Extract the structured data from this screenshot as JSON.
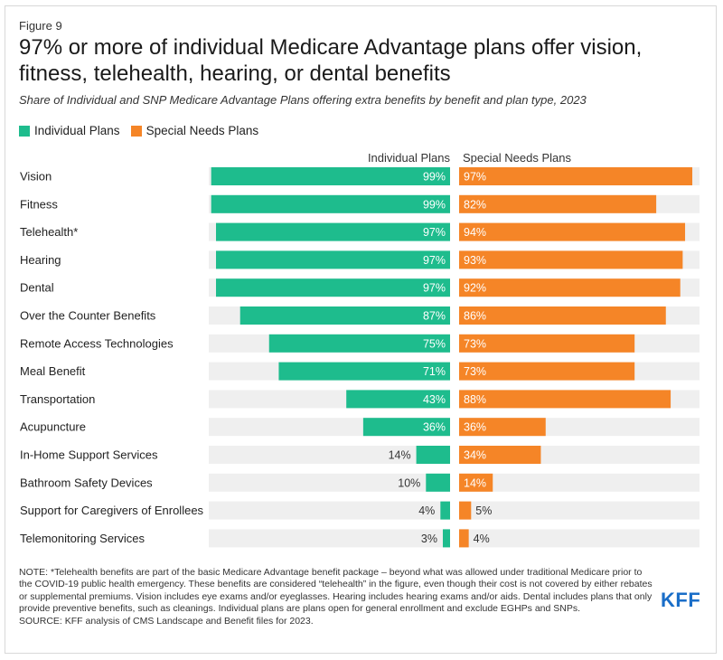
{
  "figure_label": "Figure 9",
  "title": "97% or more of individual Medicare Advantage plans offer vision, fitness, telehealth, hearing, or dental benefits",
  "subtitle": "Share of Individual and SNP Medicare Advantage Plans offering extra benefits by benefit and plan type, 2023",
  "colors": {
    "individual": "#1ebc8d",
    "snp": "#f58527",
    "track": "#efefef",
    "logo": "#1a6ec8"
  },
  "chart_data": {
    "type": "bar",
    "categories": [
      "Vision",
      "Fitness",
      "Telehealth*",
      "Hearing",
      "Dental",
      "Over the Counter Benefits",
      "Remote Access Technologies",
      "Meal Benefit",
      "Transportation",
      "Acupuncture",
      "In-Home Support Services",
      "Bathroom Safety Devices",
      "Support for Caregivers of Enrollees",
      "Telemonitoring Services"
    ],
    "series": [
      {
        "name": "Individual Plans",
        "values": [
          99,
          99,
          97,
          97,
          97,
          87,
          75,
          71,
          43,
          36,
          14,
          10,
          4,
          3
        ],
        "labels": [
          "99%",
          "99%",
          "97%",
          "97%",
          "97%",
          "87%",
          "75%",
          "71%",
          "43%",
          "36%",
          "14%",
          "10%",
          "4%",
          "3%"
        ]
      },
      {
        "name": "Special Needs Plans",
        "values": [
          97,
          82,
          94,
          93,
          92,
          86,
          73,
          73,
          88,
          36,
          34,
          14,
          5,
          4
        ],
        "labels": [
          "97%",
          "82%",
          "94%",
          "93%",
          "92%",
          "86%",
          "73%",
          "73%",
          "88%",
          "36%",
          "34%",
          "14%",
          "5%",
          "4%"
        ]
      }
    ],
    "column_headers": [
      "Individual Plans",
      "Special Needs Plans"
    ],
    "legend": [
      "Individual Plans",
      "Special Needs Plans"
    ],
    "legend_position": "top-left",
    "xlim": [
      0,
      100
    ],
    "grid": false
  },
  "notes": [
    "NOTE: *Telehealth benefits are part of the basic Medicare Advantage benefit package – beyond what was allowed under traditional Medicare prior to the COVID-19 public health emergency. These benefits are considered “telehealth” in the figure, even though their cost is not covered by either rebates or supplemental premiums. Vision includes eye exams and/or eyeglasses. Hearing includes hearing exams and/or aids. Dental includes plans that only provide preventive benefits, such as cleanings. Individual plans are plans open for general enrollment and exclude EGHPs and SNPs.",
    "SOURCE: KFF analysis of CMS Landscape and Benefit files for 2023."
  ],
  "logo_text": "KFF"
}
